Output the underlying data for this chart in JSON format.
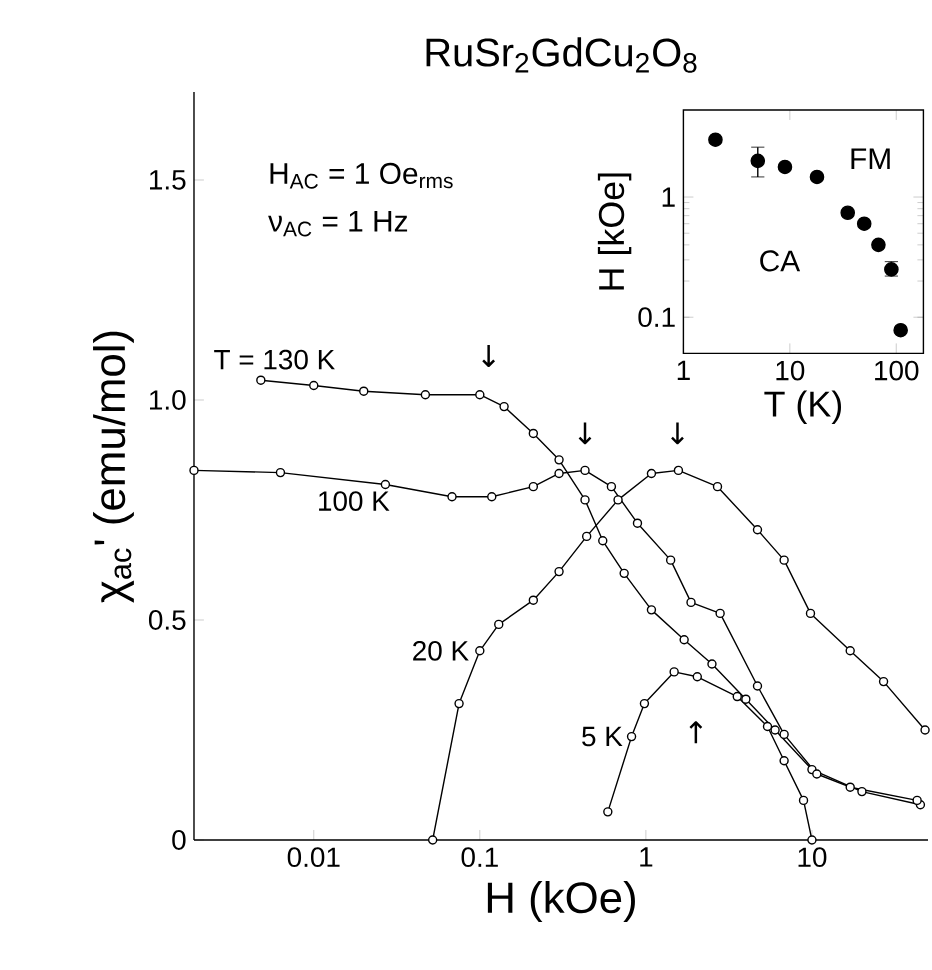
{
  "chart_data": [
    {
      "type": "line",
      "title": "RuSr$_{2}$GdCu$_{2}$O$_{8}$",
      "xlabel": "H (kOe)",
      "ylabel": "χ$_{ac}$' (emu/mol)",
      "log": "x",
      "xlim": [
        0.0019,
        50
      ],
      "xticks": [
        0.01,
        0.1,
        1,
        10
      ],
      "ylim": [
        0,
        1.7
      ],
      "yticks": [
        0,
        0.5,
        {
          "value": 1,
          "label": "1.0"
        },
        1.5
      ],
      "marker": "circle",
      "line_style": "solid",
      "series": [
        {
          "name": "T = 130 K",
          "color": "#000000",
          "x": [
            0.0048,
            0.01,
            0.02,
            0.047,
            0.1,
            0.14,
            0.21,
            0.3,
            0.43,
            0.55,
            0.74,
            1.08,
            1.7,
            2.5,
            4,
            6,
            10,
            20,
            45
          ],
          "values": [
            1.045,
            1.033,
            1.02,
            1.012,
            1.012,
            0.985,
            0.924,
            0.864,
            0.773,
            0.68,
            0.606,
            0.523,
            0.455,
            0.4,
            0.32,
            0.25,
            0.16,
            0.11,
            0.08
          ]
        },
        {
          "name": "100 K",
          "color": "#000000",
          "x": [
            0.0019,
            0.0063,
            0.027,
            0.068,
            0.118,
            0.21,
            0.3,
            0.43,
            0.62,
            0.89,
            1.41,
            1.87,
            2.8,
            4.7,
            6.8,
            10.7,
            17,
            43
          ],
          "values": [
            0.84,
            0.835,
            0.808,
            0.78,
            0.78,
            0.803,
            0.833,
            0.84,
            0.803,
            0.72,
            0.636,
            0.54,
            0.515,
            0.35,
            0.24,
            0.15,
            0.12,
            0.09
          ]
        },
        {
          "name": "20 K",
          "color": "#000000",
          "x": [
            0.052,
            0.075,
            0.1,
            0.13,
            0.21,
            0.3,
            0.44,
            0.68,
            1.08,
            1.57,
            2.7,
            4.7,
            6.8,
            9.8,
            17,
            27,
            48
          ],
          "values": [
            0,
            0.31,
            0.43,
            0.49,
            0.545,
            0.61,
            0.69,
            0.773,
            0.833,
            0.84,
            0.803,
            0.705,
            0.636,
            0.515,
            0.43,
            0.36,
            0.25
          ]
        },
        {
          "name": "5 K",
          "color": "#000000",
          "x": [
            0.59,
            0.82,
            0.98,
            1.48,
            2.04,
            3.55,
            5.4,
            6.8,
            8.9,
            10
          ],
          "values": [
            0.064,
            0.235,
            0.31,
            0.382,
            0.371,
            0.326,
            0.258,
            0.18,
            0.09,
            0
          ]
        }
      ],
      "annotations": [
        "H$_{AC}$ = 1 Oe$_{rms}$",
        "ν$_{AC}$ = 1 Hz",
        "↓",
        "↓",
        "↓",
        "↑"
      ]
    },
    {
      "type": "scatter",
      "xlabel": "T (K)",
      "ylabel": "H [kOe]",
      "log": "xy",
      "xlim": [
        1,
        180
      ],
      "ylim": [
        0.05,
        5.3
      ],
      "xticks": [
        1,
        10,
        100
      ],
      "yticks": [
        0.1,
        1
      ],
      "marker": "circle",
      "color": "#000000",
      "x": [
        2,
        5,
        9,
        18,
        35,
        50,
        68,
        90,
        110
      ],
      "values": [
        3.0,
        2.0,
        1.78,
        1.47,
        0.74,
        0.6,
        0.4,
        0.25,
        0.078
      ],
      "errors": [
        null,
        [
          1.47,
          2.6
        ],
        null,
        null,
        null,
        null,
        null,
        [
          0.22,
          0.29
        ],
        null
      ],
      "annotations": [
        "FM",
        "CA"
      ]
    }
  ]
}
